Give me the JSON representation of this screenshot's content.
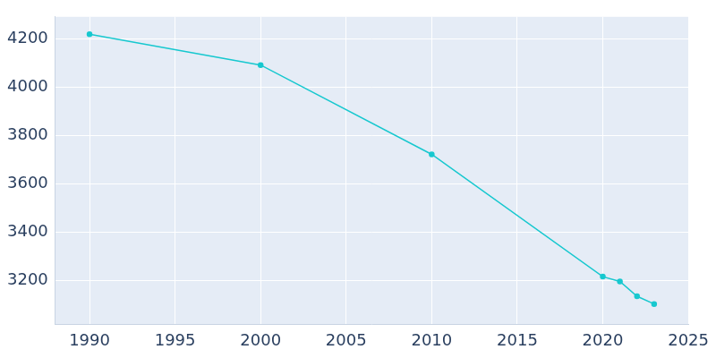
{
  "chart_data": {
    "type": "line",
    "x": [
      1990,
      2000,
      2010,
      2020,
      2021,
      2022,
      2023
    ],
    "values": [
      4218,
      4091,
      3722,
      3217,
      3197,
      3136,
      3104
    ],
    "color": "#17c8cf",
    "marker": "circle",
    "xlim": [
      1988,
      2025
    ],
    "xticks": [
      1990,
      1995,
      2000,
      2005,
      2010,
      2015,
      2020,
      2025
    ],
    "ylim": [
      3020,
      4290
    ],
    "yticks": [
      3200,
      3400,
      3600,
      3800,
      4000,
      4200
    ],
    "grid": true
  }
}
